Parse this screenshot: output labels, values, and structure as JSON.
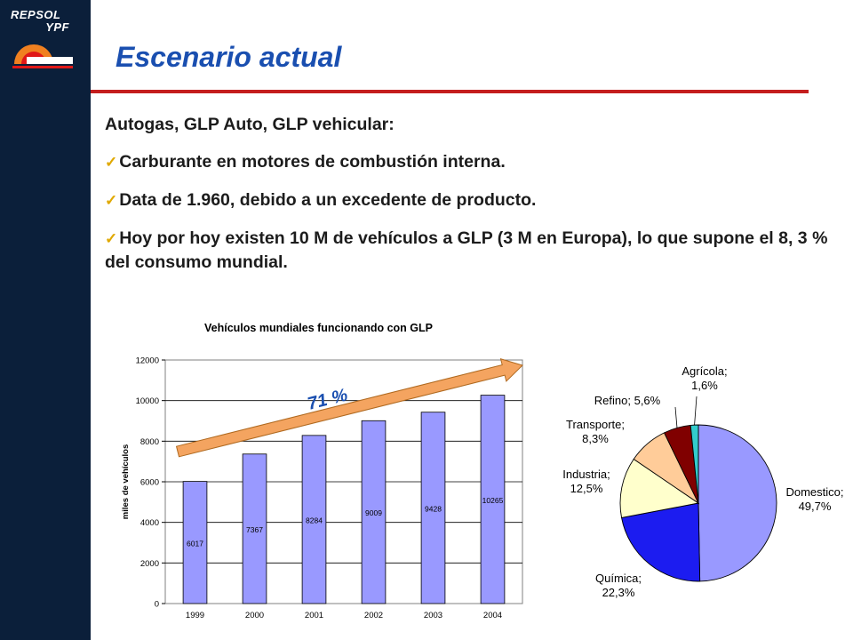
{
  "logo": {
    "line1": "REPSOL",
    "line2": "YPF"
  },
  "slide": {
    "title": "Escenario actual",
    "intro": "Autogas, GLP Auto, GLP vehicular:",
    "bullets": [
      "Carburante en motores de combustión interna.",
      "Data de 1.960, debido a un excedente de producto.",
      "Hoy por hoy existen 10 M de vehículos a GLP (3 M en Europa), lo que supone el 8, 3 % del consumo mundial."
    ],
    "check_icon": "checkmark-icon",
    "colors": {
      "title": "#1a4fb0",
      "rule": "#c41e1e",
      "sidebar": "#0b1f3a"
    }
  },
  "chart_data": [
    {
      "type": "bar",
      "title": "Vehículos mundiales funcionando con GLP",
      "ylabel": "miles de vehículos",
      "categories": [
        "1999",
        "2000",
        "2001",
        "2002",
        "2003",
        "2004"
      ],
      "values": [
        6017,
        7367,
        8284,
        9009,
        9428,
        10265
      ],
      "ylim": [
        0,
        12000
      ],
      "yticks": [
        "0",
        "2000",
        "4000",
        "6000",
        "8000",
        "10000",
        "12000"
      ],
      "grid": true,
      "bar_color": "#9999ff",
      "annotation": {
        "text": "71 %",
        "arrow_color": "#f4a460"
      }
    },
    {
      "type": "pie",
      "slices": [
        {
          "name": "Domestico",
          "value": 49.7,
          "label": "Domestico;\n49,7%",
          "color": "#9999ff"
        },
        {
          "name": "Química",
          "value": 22.3,
          "label": "Química;\n22,3%",
          "color": "#1c1cf0"
        },
        {
          "name": "Industria",
          "value": 12.5,
          "label": "Industria;\n12,5%",
          "color": "#ffffcc"
        },
        {
          "name": "Transporte",
          "value": 8.3,
          "label": "Transporte;\n8,3%",
          "color": "#ffcc99"
        },
        {
          "name": "Refino",
          "value": 5.6,
          "label": "Refino; 5,6%",
          "color": "#800000"
        },
        {
          "name": "Agrícola",
          "value": 1.6,
          "label": "Agrícola;\n1,6%",
          "color": "#33cccc"
        }
      ]
    }
  ]
}
